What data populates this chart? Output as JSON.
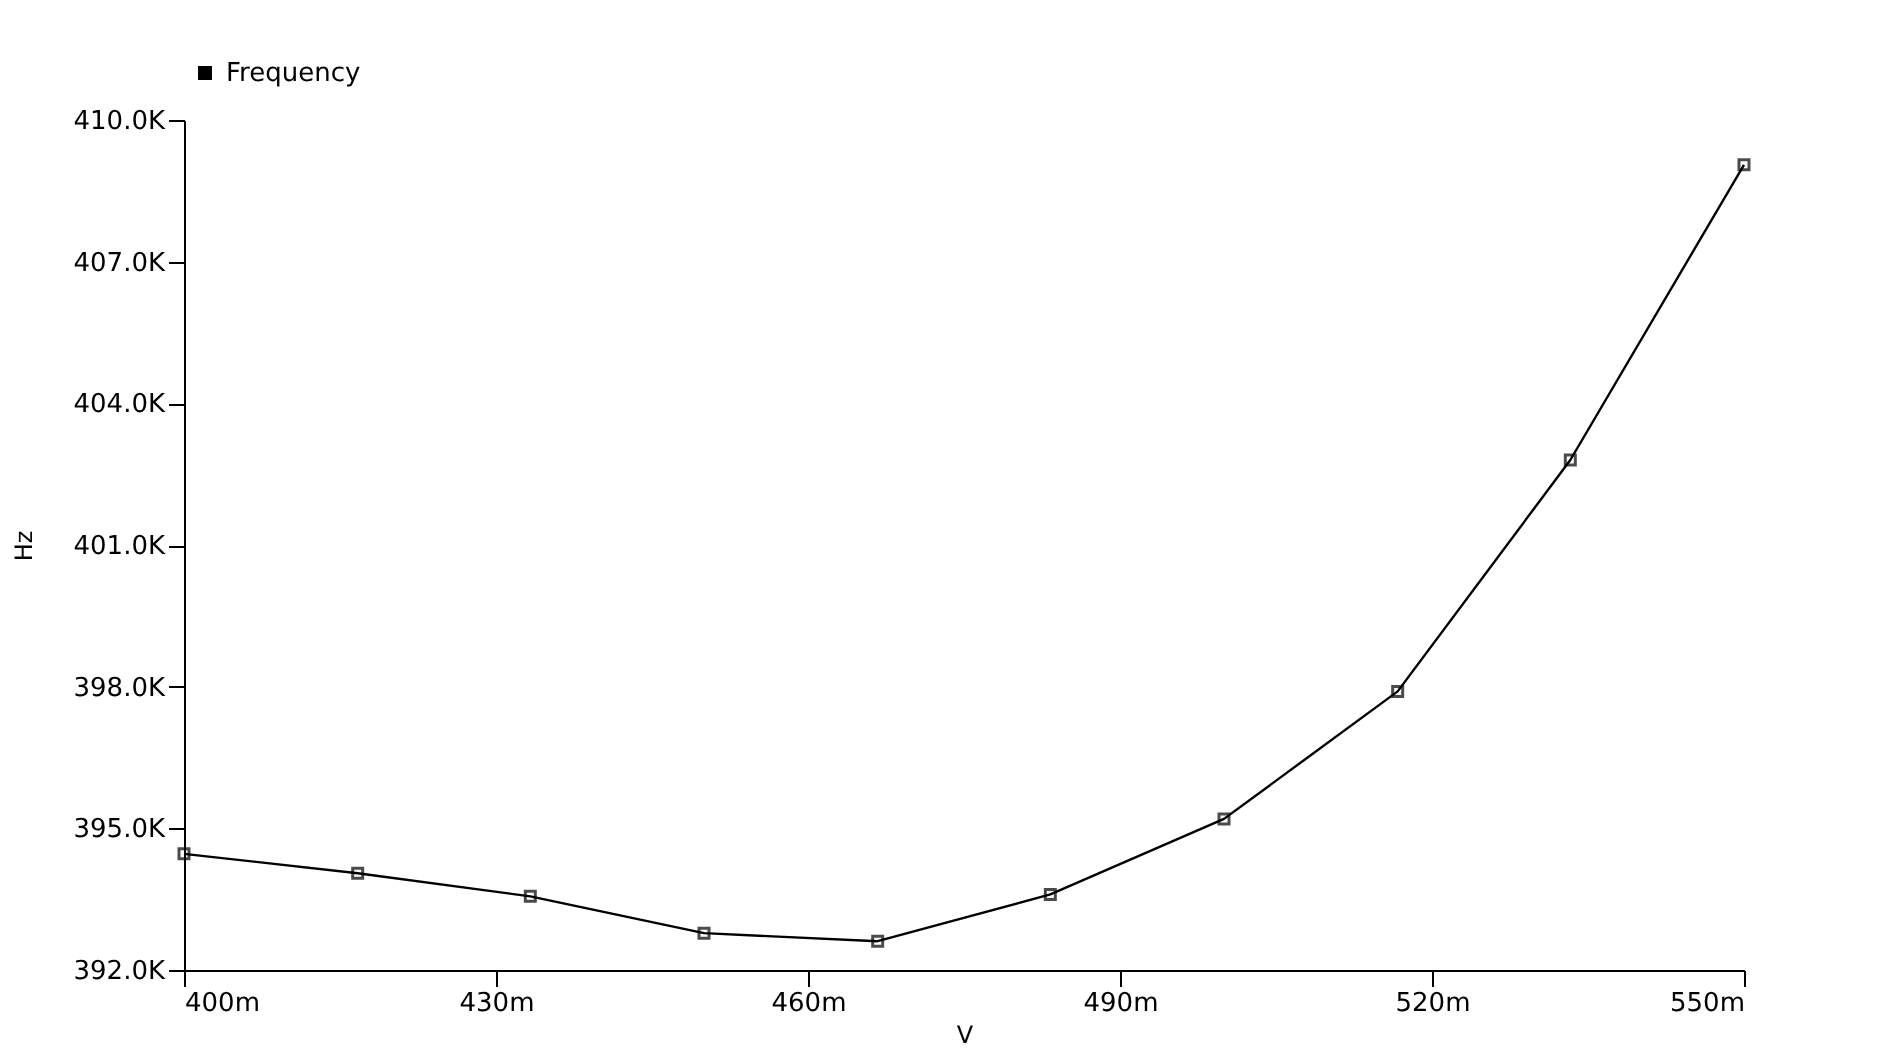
{
  "chart_data": {
    "type": "line",
    "xlabel": "V",
    "ylabel": "Hz",
    "series": [
      {
        "name": "Frequency",
        "color": "#000000",
        "x": [
          400,
          416.7,
          433.3,
          450,
          466.7,
          483.3,
          500,
          516.7,
          533.3,
          550
        ],
        "values": [
          394460,
          394050,
          393560,
          392780,
          392610,
          393600,
          395200,
          397900,
          402800,
          409050
        ]
      }
    ],
    "xlim": [
      400,
      550
    ],
    "ylim": [
      392000,
      410000
    ],
    "xticks": [
      {
        "value": 400,
        "label": "400m"
      },
      {
        "value": 430,
        "label": "430m"
      },
      {
        "value": 460,
        "label": "460m"
      },
      {
        "value": 490,
        "label": "490m"
      },
      {
        "value": 520,
        "label": "520m"
      },
      {
        "value": 550,
        "label": "550m"
      }
    ],
    "yticks": [
      {
        "value": 392000,
        "label": "392.0K"
      },
      {
        "value": 395000,
        "label": "395.0K"
      },
      {
        "value": 398000,
        "label": "398.0K"
      },
      {
        "value": 401000,
        "label": "401.0K"
      },
      {
        "value": 404000,
        "label": "404.0K"
      },
      {
        "value": 407000,
        "label": "407.0K"
      },
      {
        "value": 410000,
        "label": "410.0K"
      }
    ],
    "grid": false,
    "legend": "top left",
    "marker": "square",
    "line_style": "solid"
  }
}
